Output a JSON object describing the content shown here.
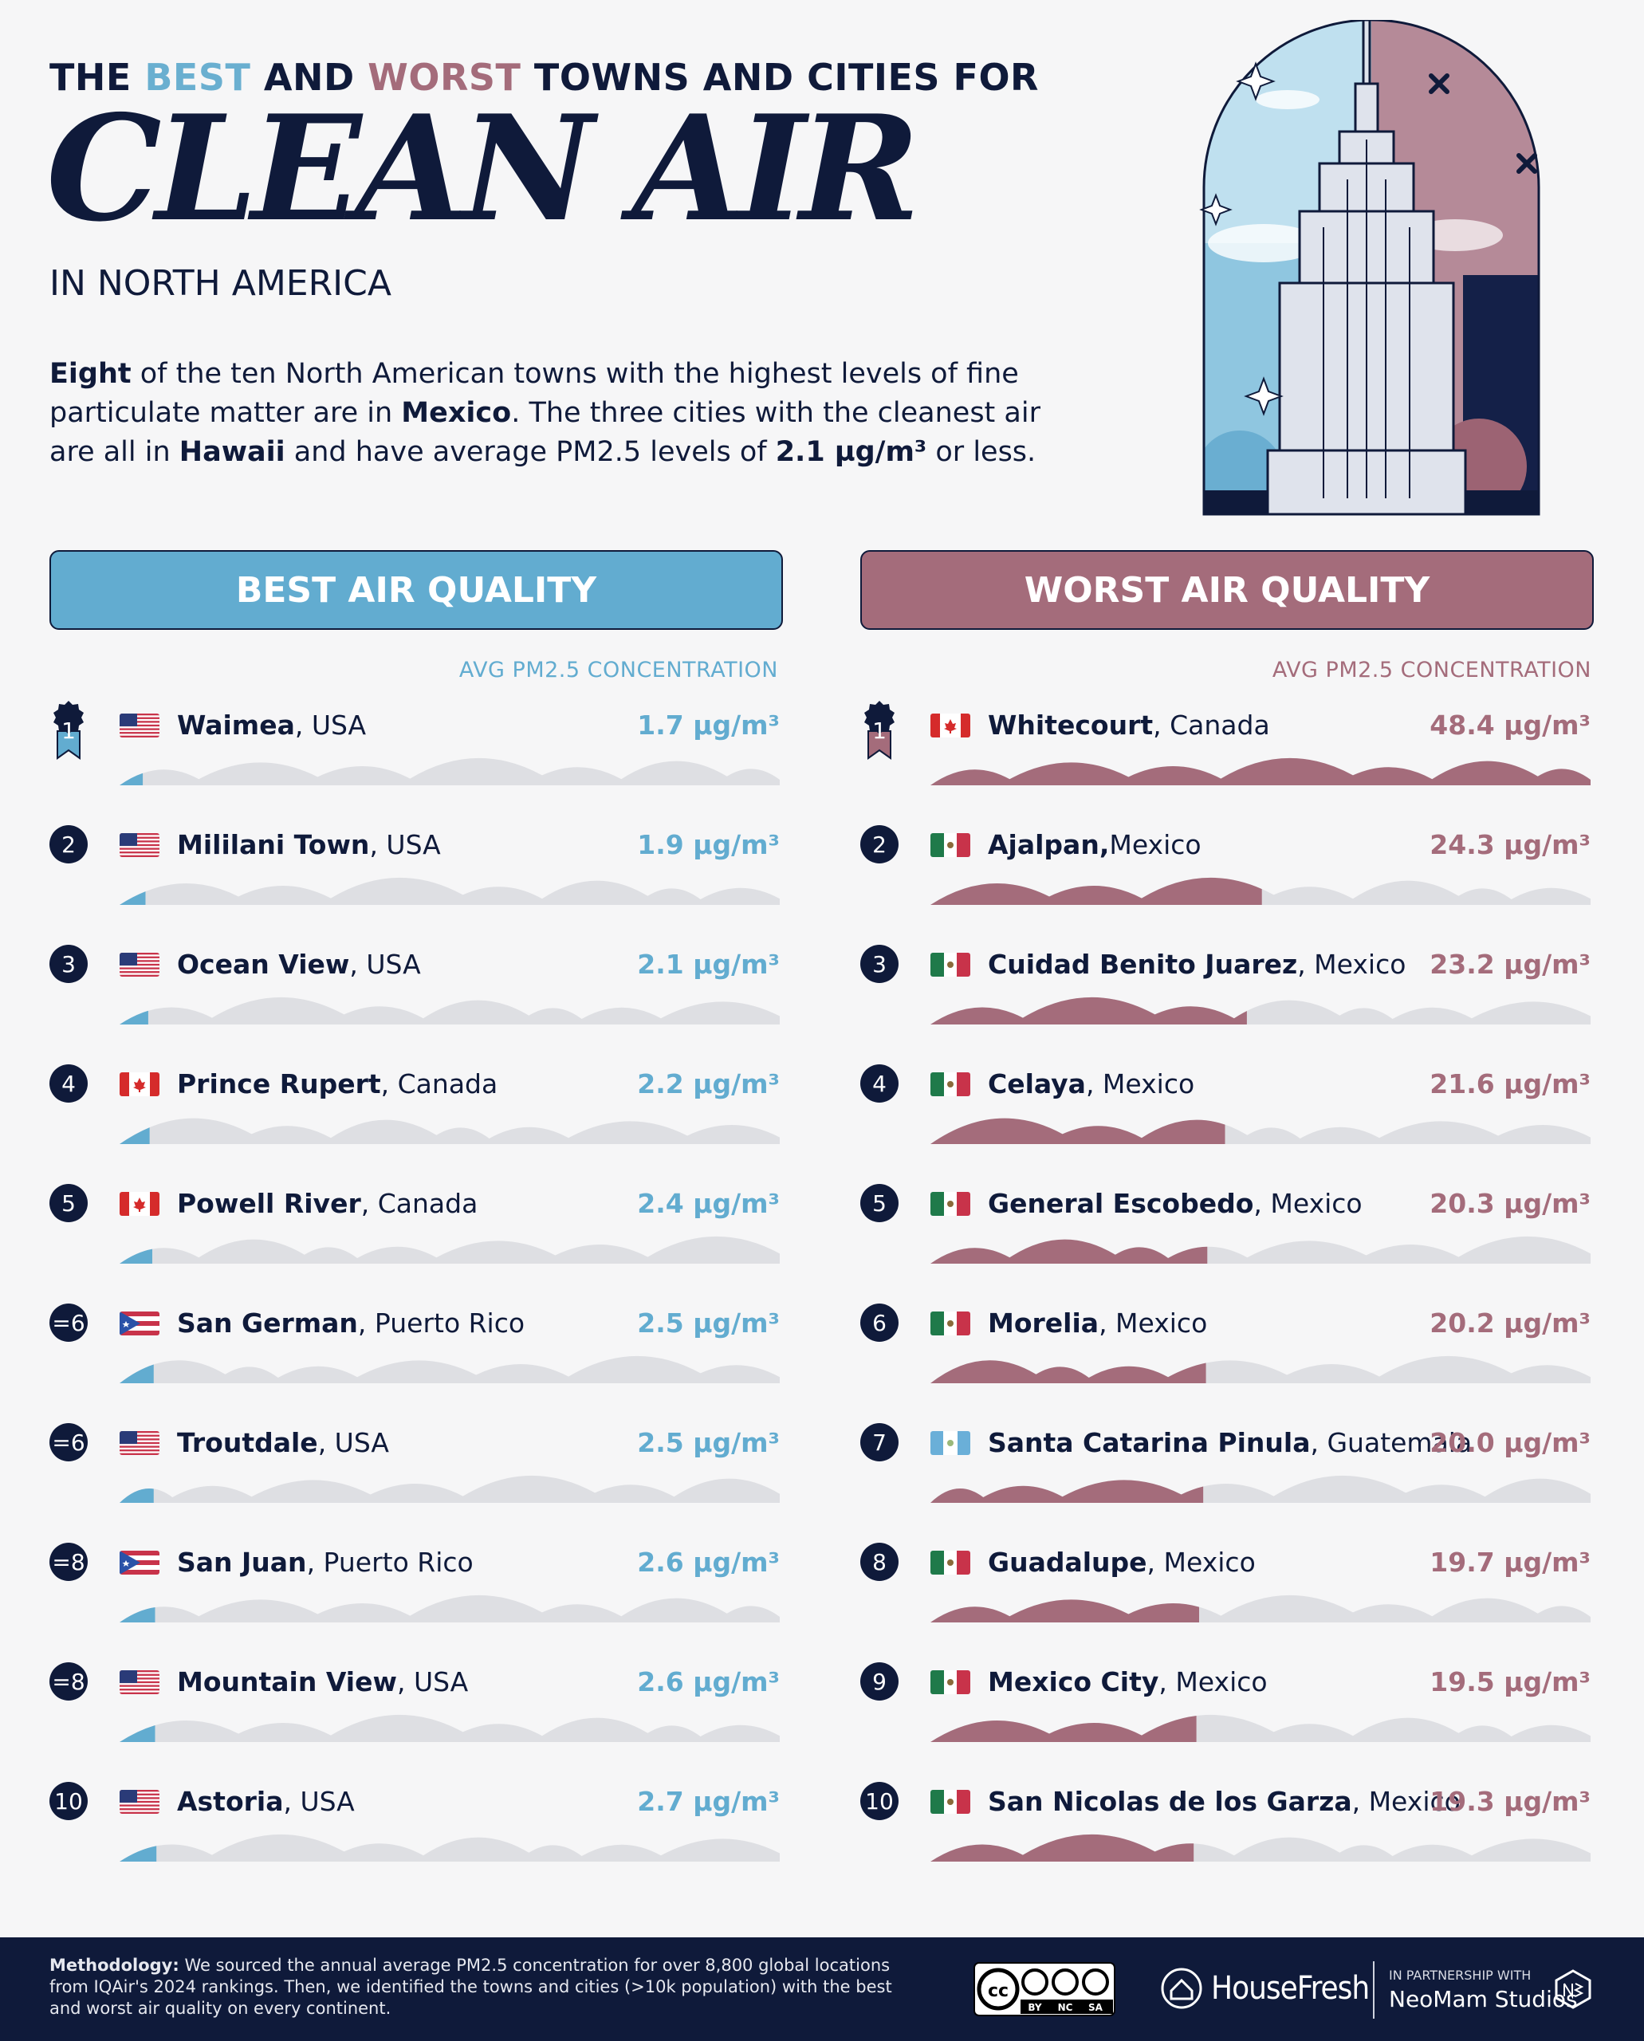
{
  "header": {
    "top_line_pre": "THE ",
    "top_line_best": "BEST",
    "top_line_mid": " AND ",
    "top_line_worst": "WORST",
    "top_line_post": " TOWNS AND CITIES FOR",
    "headline": "CLEAN AIR",
    "region": "IN NORTH AMERICA"
  },
  "intro": {
    "b1": "Eight",
    "t1": " of the ten North American towns with the highest levels of fine particulate matter are in ",
    "b2": "Mexico",
    "t2": ". The three cities with the cleanest air are all in ",
    "b3": "Hawaii",
    "t3": " and have average PM2.5 levels of ",
    "b4": "2.1 µg/m³",
    "t4": " or less."
  },
  "colors": {
    "best": "#62acd0",
    "worst": "#a46c7b",
    "navy": "#0f1a3a",
    "track": "#dedfe3"
  },
  "chart_data": [
    {
      "type": "bar",
      "title": "BEST AIR QUALITY",
      "value_label": "AVG PM2.5 CONCENTRATION",
      "unit": "µg/m³",
      "xlim": [
        0,
        48.4
      ],
      "rows": [
        {
          "rank": "1",
          "name": "Waimea",
          "country": "USA",
          "flag": "us",
          "value": 1.7,
          "value_text": "1.7 µg/m³"
        },
        {
          "rank": "2",
          "name": "Mililani Town",
          "country": "USA",
          "flag": "us",
          "value": 1.9,
          "value_text": "1.9 µg/m³"
        },
        {
          "rank": "3",
          "name": "Ocean View",
          "country": "USA",
          "flag": "us",
          "value": 2.1,
          "value_text": "2.1 µg/m³"
        },
        {
          "rank": "4",
          "name": "Prince Rupert",
          "country": "Canada",
          "flag": "ca",
          "value": 2.2,
          "value_text": "2.2 µg/m³"
        },
        {
          "rank": "5",
          "name": "Powell River",
          "country": "Canada",
          "flag": "ca",
          "value": 2.4,
          "value_text": "2.4 µg/m³"
        },
        {
          "rank": "=6",
          "name": "San German",
          "country": "Puerto Rico",
          "flag": "pr",
          "value": 2.5,
          "value_text": "2.5 µg/m³"
        },
        {
          "rank": "=6",
          "name": "Troutdale",
          "country": "USA",
          "flag": "us",
          "value": 2.5,
          "value_text": "2.5 µg/m³"
        },
        {
          "rank": "=8",
          "name": "San Juan",
          "country": "Puerto Rico",
          "flag": "pr",
          "value": 2.6,
          "value_text": "2.6 µg/m³"
        },
        {
          "rank": "=8",
          "name": "Mountain View",
          "country": "USA",
          "flag": "us",
          "value": 2.6,
          "value_text": "2.6 µg/m³"
        },
        {
          "rank": "10",
          "name": "Astoria",
          "country": "USA",
          "flag": "us",
          "value": 2.7,
          "value_text": "2.7 µg/m³"
        }
      ]
    },
    {
      "type": "bar",
      "title": "WORST AIR QUALITY",
      "value_label": "AVG PM2.5 CONCENTRATION",
      "unit": "µg/m³",
      "xlim": [
        0,
        48.4
      ],
      "rows": [
        {
          "rank": "1",
          "name": "Whitecourt",
          "country": "Canada",
          "flag": "ca",
          "value": 48.4,
          "value_text": "48.4 µg/m³"
        },
        {
          "rank": "2",
          "name": "Ajalpan,",
          "country": "Mexico",
          "flag": "mx",
          "value": 24.3,
          "value_text": "24.3 µg/m³"
        },
        {
          "rank": "3",
          "name": "Cuidad Benito Juarez",
          "country": "Mexico",
          "flag": "mx",
          "value": 23.2,
          "value_text": "23.2 µg/m³"
        },
        {
          "rank": "4",
          "name": "Celaya",
          "country": "Mexico",
          "flag": "mx",
          "value": 21.6,
          "value_text": "21.6 µg/m³"
        },
        {
          "rank": "5",
          "name": "General Escobedo",
          "country": "Mexico",
          "flag": "mx",
          "value": 20.3,
          "value_text": "20.3 µg/m³"
        },
        {
          "rank": "6",
          "name": "Morelia",
          "country": "Mexico",
          "flag": "mx",
          "value": 20.2,
          "value_text": "20.2 µg/m³"
        },
        {
          "rank": "7",
          "name": "Santa Catarina Pinula",
          "country": "Guatemala",
          "flag": "gt",
          "value": 20.0,
          "value_text": "20.0 µg/m³"
        },
        {
          "rank": "8",
          "name": "Guadalupe",
          "country": "Mexico",
          "flag": "mx",
          "value": 19.7,
          "value_text": "19.7 µg/m³"
        },
        {
          "rank": "9",
          "name": "Mexico City",
          "country": "Mexico",
          "flag": "mx",
          "value": 19.5,
          "value_text": "19.5 µg/m³"
        },
        {
          "rank": "10",
          "name": "San Nicolas de los Garza",
          "country": "Mexico",
          "flag": "mx",
          "value": 19.3,
          "value_text": "19.3 µg/m³"
        }
      ]
    }
  ],
  "footer": {
    "method_bold": "Methodology:",
    "method_text": " We sourced the annual average PM2.5 concentration for over 8,800 global locations from IQAir's 2024 rankings. Then, we identified the towns and cities (>10k population) with the best and worst air quality on every continent.",
    "cc_labels": [
      "BY",
      "NC",
      "SA"
    ],
    "brand": "HouseFresh",
    "partner_small": "IN PARTNERSHIP WITH",
    "partner_name": "NeoMam Studios"
  }
}
